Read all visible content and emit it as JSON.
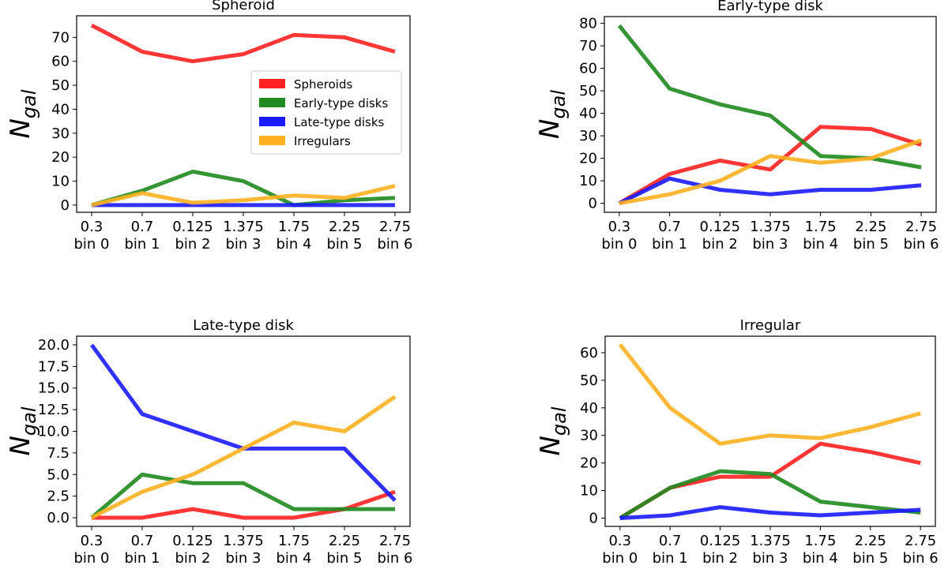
{
  "chart_data": [
    {
      "type": "line",
      "title": "Spheroid",
      "ylabel_main": "N",
      "ylabel_sub": "gal",
      "categories": [
        [
          "0.3",
          "bin 0"
        ],
        [
          "0.7",
          "bin 1"
        ],
        [
          "0.125",
          "bin 2"
        ],
        [
          "1.375",
          "bin 3"
        ],
        [
          "1.75",
          "bin 4"
        ],
        [
          "2.25",
          "bin 5"
        ],
        [
          "2.75",
          "bin 6"
        ]
      ],
      "ylim": [
        -3,
        79
      ],
      "yticks": [
        0,
        10,
        20,
        30,
        40,
        50,
        60,
        70
      ],
      "legend": "upper-right",
      "series": [
        {
          "name": "Spheroids",
          "color": "#ff2020",
          "values": [
            75,
            64,
            60,
            63,
            71,
            70,
            64
          ]
        },
        {
          "name": "Early-type disks",
          "color": "#1f8a1f",
          "values": [
            0,
            6,
            14,
            10,
            0,
            2,
            3
          ]
        },
        {
          "name": "Late-type disks",
          "color": "#1a1aff",
          "values": [
            0,
            0,
            0,
            0,
            0,
            0,
            0
          ]
        },
        {
          "name": "Irregulars",
          "color": "#ffb020",
          "values": [
            0,
            5,
            1,
            2,
            4,
            3,
            8
          ]
        }
      ]
    },
    {
      "type": "line",
      "title": "Early-type disk",
      "ylabel_main": "N",
      "ylabel_sub": "gal",
      "categories": [
        [
          "0.3",
          "bin 0"
        ],
        [
          "0.7",
          "bin 1"
        ],
        [
          "0.125",
          "bin 2"
        ],
        [
          "1.375",
          "bin 3"
        ],
        [
          "1.75",
          "bin 4"
        ],
        [
          "2.25",
          "bin 5"
        ],
        [
          "2.75",
          "bin 6"
        ]
      ],
      "ylim": [
        -4,
        83
      ],
      "yticks": [
        0,
        10,
        20,
        30,
        40,
        50,
        60,
        70,
        80
      ],
      "legend": "none",
      "series": [
        {
          "name": "Spheroids",
          "color": "#ff2020",
          "values": [
            0,
            13,
            19,
            15,
            34,
            33,
            26
          ]
        },
        {
          "name": "Early-type disks",
          "color": "#1f8a1f",
          "values": [
            79,
            51,
            44,
            39,
            21,
            20,
            16
          ]
        },
        {
          "name": "Late-type disks",
          "color": "#1a1aff",
          "values": [
            0,
            11,
            6,
            4,
            6,
            6,
            8
          ]
        },
        {
          "name": "Irregulars",
          "color": "#ffb020",
          "values": [
            0,
            4,
            10,
            21,
            18,
            20,
            28
          ]
        }
      ]
    },
    {
      "type": "line",
      "title": "Late-type disk",
      "ylabel_main": "N",
      "ylabel_sub": "gal",
      "categories": [
        [
          "0.3",
          "bin 0"
        ],
        [
          "0.7",
          "bin 1"
        ],
        [
          "0.125",
          "bin 2"
        ],
        [
          "1.375",
          "bin 3"
        ],
        [
          "1.75",
          "bin 4"
        ],
        [
          "2.25",
          "bin 5"
        ],
        [
          "2.75",
          "bin 6"
        ]
      ],
      "ylim": [
        -1,
        21
      ],
      "yticks": [
        0.0,
        2.5,
        5.0,
        7.5,
        10.0,
        12.5,
        15.0,
        17.5,
        20.0
      ],
      "ytick_labels": [
        "0.0",
        "2.5",
        "5.0",
        "7.5",
        "10.0",
        "12.5",
        "15.0",
        "17.5",
        "20.0"
      ],
      "legend": "none",
      "series": [
        {
          "name": "Spheroids",
          "color": "#ff2020",
          "values": [
            0,
            0,
            1,
            0,
            0,
            1,
            3
          ]
        },
        {
          "name": "Early-type disks",
          "color": "#1f8a1f",
          "values": [
            0,
            5,
            4,
            4,
            1,
            1,
            1
          ]
        },
        {
          "name": "Late-type disks",
          "color": "#1a1aff",
          "values": [
            20,
            12,
            10,
            8,
            8,
            8,
            2
          ]
        },
        {
          "name": "Irregulars",
          "color": "#ffb020",
          "values": [
            0,
            3,
            5,
            8,
            11,
            10,
            14
          ]
        }
      ]
    },
    {
      "type": "line",
      "title": "Irregular",
      "ylabel_main": "N",
      "ylabel_sub": "gal",
      "categories": [
        [
          "0.3",
          "bin 0"
        ],
        [
          "0.7",
          "bin 1"
        ],
        [
          "0.125",
          "bin 2"
        ],
        [
          "1.375",
          "bin 3"
        ],
        [
          "1.75",
          "bin 4"
        ],
        [
          "2.25",
          "bin 5"
        ],
        [
          "2.75",
          "bin 6"
        ]
      ],
      "ylim": [
        -3,
        66
      ],
      "yticks": [
        0,
        10,
        20,
        30,
        40,
        50,
        60
      ],
      "legend": "none",
      "series": [
        {
          "name": "Spheroids",
          "color": "#ff2020",
          "values": [
            0,
            11,
            15,
            15,
            27,
            24,
            20
          ]
        },
        {
          "name": "Early-type disks",
          "color": "#1f8a1f",
          "values": [
            0,
            11,
            17,
            16,
            6,
            4,
            2
          ]
        },
        {
          "name": "Late-type disks",
          "color": "#1a1aff",
          "values": [
            0,
            1,
            4,
            2,
            1,
            2,
            3
          ]
        },
        {
          "name": "Irregulars",
          "color": "#ffb020",
          "values": [
            63,
            40,
            27,
            30,
            29,
            33,
            38
          ]
        }
      ]
    }
  ]
}
